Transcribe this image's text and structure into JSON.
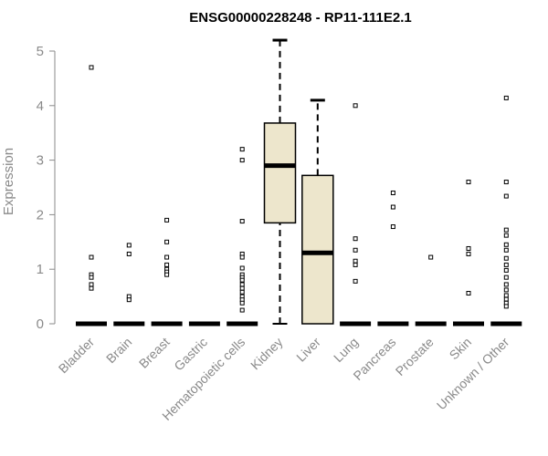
{
  "chart_data": {
    "type": "boxplot",
    "title": "ENSG00000228248 - RP11-111E2.1",
    "xlabel": "",
    "ylabel": "Expression",
    "ylim": [
      0,
      5.2
    ],
    "yticks": [
      0,
      1,
      2,
      3,
      4,
      5
    ],
    "box_fill": "#ede6cc",
    "categories": [
      "Bladder",
      "Brain",
      "Breast",
      "Gastric",
      "Hematopoietic cells",
      "Kidney",
      "Liver",
      "Lung",
      "Pancreas",
      "Prostate",
      "Skin",
      "Unknown / Other"
    ],
    "boxes": [
      {
        "category": "Bladder",
        "min": 0,
        "q1": 0,
        "median": 0,
        "q3": 0,
        "max": 0,
        "outliers": [
          4.7,
          1.22,
          0.9,
          0.85,
          0.72,
          0.65
        ]
      },
      {
        "category": "Brain",
        "min": 0,
        "q1": 0,
        "median": 0,
        "q3": 0,
        "max": 0,
        "outliers": [
          1.44,
          1.28,
          0.5,
          0.44
        ]
      },
      {
        "category": "Breast",
        "min": 0,
        "q1": 0,
        "median": 0,
        "q3": 0,
        "max": 0,
        "outliers": [
          1.9,
          1.5,
          1.22,
          1.08,
          1.0,
          0.95,
          0.9
        ]
      },
      {
        "category": "Gastric",
        "min": 0,
        "q1": 0,
        "median": 0,
        "q3": 0,
        "max": 0,
        "outliers": []
      },
      {
        "category": "Hematopoietic cells",
        "min": 0,
        "q1": 0,
        "median": 0,
        "q3": 0,
        "max": 0,
        "outliers": [
          3.2,
          3.0,
          1.88,
          1.28,
          1.22,
          1.02,
          0.9,
          0.85,
          0.8,
          0.72,
          0.65,
          0.58,
          0.5,
          0.44,
          0.38,
          0.25
        ]
      },
      {
        "category": "Kidney",
        "min": 0,
        "q1": 1.85,
        "median": 2.9,
        "q3": 3.68,
        "max": 5.2,
        "outliers": []
      },
      {
        "category": "Liver",
        "min": 0,
        "q1": 0,
        "median": 1.3,
        "q3": 2.72,
        "max": 4.1,
        "outliers": []
      },
      {
        "category": "Lung",
        "min": 0,
        "q1": 0,
        "median": 0,
        "q3": 0,
        "max": 0,
        "outliers": [
          4.0,
          1.56,
          1.35,
          1.15,
          1.08,
          0.78
        ]
      },
      {
        "category": "Pancreas",
        "min": 0,
        "q1": 0,
        "median": 0,
        "q3": 0,
        "max": 0,
        "outliers": [
          2.4,
          2.14,
          1.78
        ]
      },
      {
        "category": "Prostate",
        "min": 0,
        "q1": 0,
        "median": 0,
        "q3": 0,
        "max": 0,
        "outliers": [
          1.22
        ]
      },
      {
        "category": "Skin",
        "min": 0,
        "q1": 0,
        "median": 0,
        "q3": 0,
        "max": 0,
        "outliers": [
          2.6,
          1.38,
          1.28,
          0.56
        ]
      },
      {
        "category": "Unknown / Other",
        "min": 0,
        "q1": 0,
        "median": 0,
        "q3": 0,
        "max": 0,
        "outliers": [
          4.14,
          2.6,
          2.34,
          1.72,
          1.62,
          1.45,
          1.35,
          1.2,
          1.08,
          0.98,
          0.85,
          0.72,
          0.62,
          0.52,
          0.45,
          0.38,
          0.32
        ]
      }
    ]
  }
}
